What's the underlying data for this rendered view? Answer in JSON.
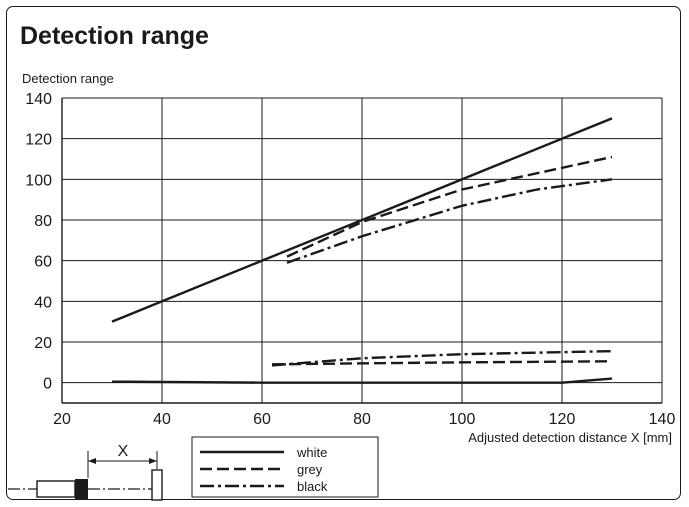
{
  "colors": {
    "ink": "#1a1a1a",
    "background": "#ffffff"
  },
  "chart_data": {
    "type": "line",
    "title": "Detection range",
    "ylabel": "Detection range",
    "xlabel": "Adjusted detection distance X [mm]",
    "xlim": [
      20,
      140
    ],
    "ylim": [
      -10,
      140
    ],
    "xticks": [
      20,
      40,
      60,
      80,
      100,
      120,
      140
    ],
    "yticks": [
      0,
      20,
      40,
      60,
      80,
      100,
      120,
      140
    ],
    "grid": true,
    "legend_position": "bottom-center",
    "series": [
      {
        "name": "white",
        "dash": "solid",
        "x": [
          30,
          130
        ],
        "y": [
          30,
          130
        ]
      },
      {
        "name": "grey",
        "dash": "dashed",
        "x": [
          65,
          80,
          100,
          130
        ],
        "y": [
          62,
          79,
          95,
          111
        ]
      },
      {
        "name": "black",
        "dash": "dashdot",
        "x": [
          65,
          80,
          100,
          115,
          130
        ],
        "y": [
          59,
          72,
          87,
          95,
          100
        ]
      },
      {
        "name": "white",
        "dash": "solid",
        "legend": false,
        "x": [
          30,
          60,
          120,
          130
        ],
        "y": [
          0.5,
          0,
          0,
          2
        ]
      },
      {
        "name": "grey",
        "dash": "dashed",
        "legend": false,
        "x": [
          62,
          80,
          100,
          130
        ],
        "y": [
          9,
          9.5,
          10,
          10.5
        ]
      },
      {
        "name": "black",
        "dash": "dashdot",
        "legend": false,
        "x": [
          62,
          80,
          100,
          130
        ],
        "y": [
          8.5,
          12,
          14,
          15.5
        ]
      }
    ],
    "diagram": {
      "label": "X"
    }
  }
}
